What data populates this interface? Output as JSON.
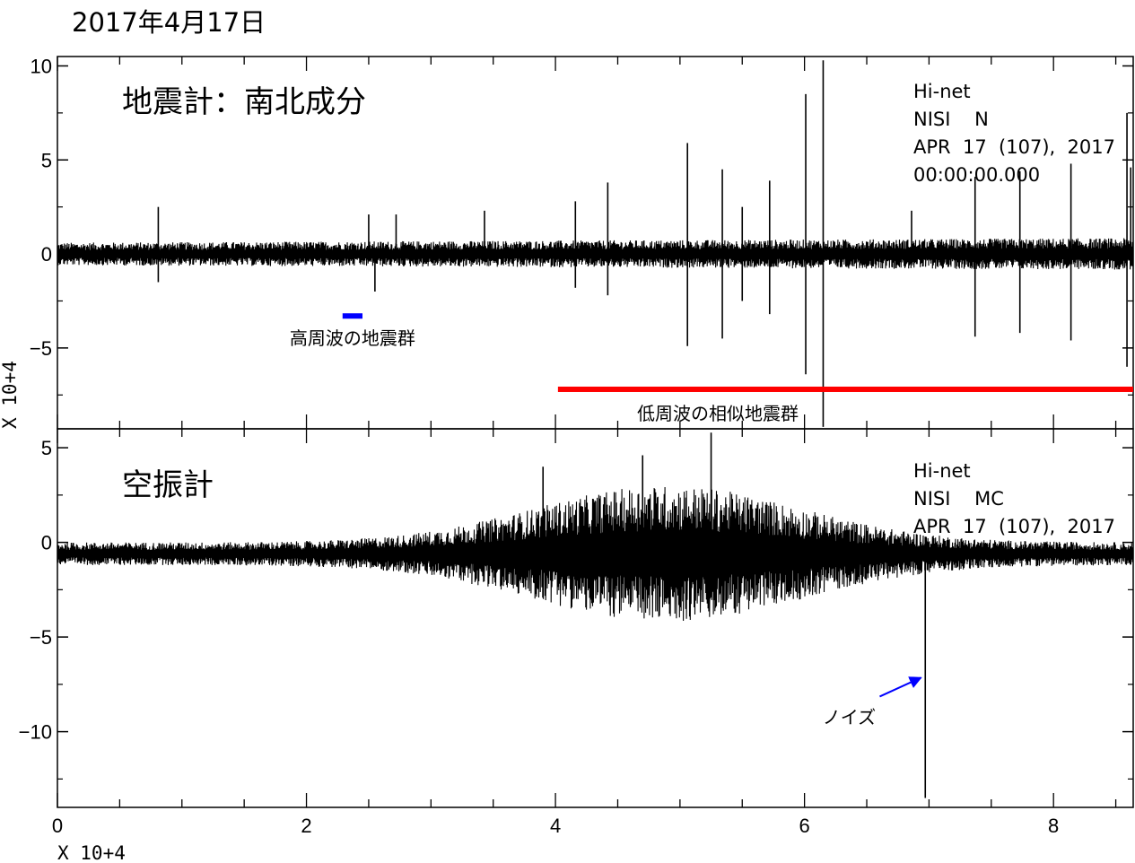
{
  "title": "2017年4月17日",
  "chart_data": [
    {
      "type": "line",
      "panel": "top",
      "panel_label": "地震計：南北成分",
      "x_multiplier_label": "X 10+4",
      "y_multiplier_label": "X 10+4",
      "xlim": [
        0,
        8.64
      ],
      "ylim": [
        -9.3,
        10.5
      ],
      "y_ticks": [
        10,
        5,
        0,
        -5
      ],
      "y_tick_labels": [
        "10",
        "5",
        "0",
        "−5"
      ],
      "info_lines": [
        "Hi-net",
        "NISI    N",
        "APR  17  (107),  2017",
        "00:00:00.000"
      ],
      "baseline": 0,
      "noise_amplitude": 0.4,
      "spikes": [
        {
          "x": 0.81,
          "y": 2.5
        },
        {
          "x": 0.81,
          "y": -1.5
        },
        {
          "x": 2.5,
          "y": 2.1
        },
        {
          "x": 2.55,
          "y": -2.0
        },
        {
          "x": 2.72,
          "y": 2.1
        },
        {
          "x": 3.43,
          "y": 2.3
        },
        {
          "x": 4.16,
          "y": 2.8
        },
        {
          "x": 4.16,
          "y": -1.8
        },
        {
          "x": 4.42,
          "y": 3.8
        },
        {
          "x": 4.42,
          "y": -2.2
        },
        {
          "x": 5.06,
          "y": 5.9
        },
        {
          "x": 5.06,
          "y": -4.9
        },
        {
          "x": 5.34,
          "y": 4.5
        },
        {
          "x": 5.34,
          "y": -4.5
        },
        {
          "x": 5.5,
          "y": 2.5
        },
        {
          "x": 5.5,
          "y": -2.5
        },
        {
          "x": 5.72,
          "y": 3.9
        },
        {
          "x": 5.72,
          "y": -3.2
        },
        {
          "x": 6.01,
          "y": 8.5
        },
        {
          "x": 6.01,
          "y": -6.4
        },
        {
          "x": 6.15,
          "y": 10.3
        },
        {
          "x": 6.15,
          "y": -9.2
        },
        {
          "x": 6.86,
          "y": 2.3
        },
        {
          "x": 7.37,
          "y": 4.1
        },
        {
          "x": 7.37,
          "y": -4.4
        },
        {
          "x": 7.73,
          "y": 4.4
        },
        {
          "x": 7.73,
          "y": -4.2
        },
        {
          "x": 8.14,
          "y": 4.8
        },
        {
          "x": 8.14,
          "y": -4.6
        },
        {
          "x": 8.59,
          "y": 7.5
        },
        {
          "x": 8.59,
          "y": -6.0
        },
        {
          "x": 8.62,
          "y": 4.6
        }
      ],
      "annotations": [
        {
          "text": "高周波の地震群",
          "color": "#0000ff",
          "x_start": 2.29,
          "x_end": 2.45,
          "y": -3.3
        },
        {
          "text": "低周波の相似地震群",
          "color": "#ff0000",
          "x_start": 4.02,
          "x_end": 8.64,
          "y": -7.2
        }
      ]
    },
    {
      "type": "line",
      "panel": "bottom",
      "panel_label": "空振計",
      "x_multiplier_label": "X 10+4",
      "xlim": [
        0,
        8.64
      ],
      "ylim": [
        -14,
        6
      ],
      "x_ticks": [
        0,
        2,
        4,
        6,
        8
      ],
      "x_tick_labels": [
        "0",
        "2",
        "4",
        "6",
        "8"
      ],
      "y_ticks": [
        5,
        0,
        -5,
        -10
      ],
      "y_tick_labels": [
        "5",
        "0",
        "−5",
        "−10"
      ],
      "info_lines": [
        "Hi-net",
        "NISI    MC",
        "APR  17  (107),  2017"
      ],
      "baseline": -0.6,
      "noise_amplitude_min": 0.4,
      "noise_amplitude_max": 2.4,
      "noise_peak_x": 4.9,
      "spikes": [
        {
          "x": 3.9,
          "y": 4.0
        },
        {
          "x": 4.7,
          "y": 4.6
        },
        {
          "x": 4.72,
          "y": -2.0
        },
        {
          "x": 5.25,
          "y": 5.8
        },
        {
          "x": 5.03,
          "y": -2.7
        },
        {
          "x": 6.97,
          "y": 0.3
        },
        {
          "x": 6.97,
          "y": -13.5
        }
      ],
      "annotations": [
        {
          "text": "ノイズ",
          "color": "#0000ff",
          "arrow_to_x": 6.95,
          "arrow_to_y": -7.1
        }
      ]
    }
  ]
}
